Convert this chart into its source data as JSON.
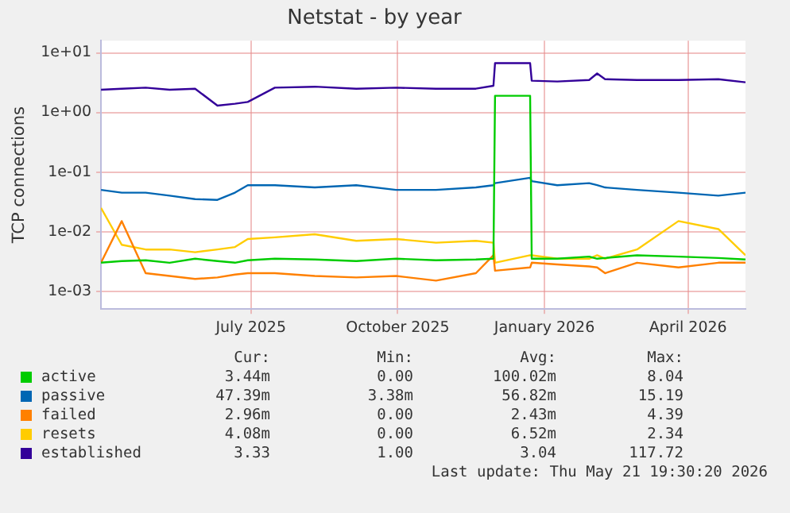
{
  "chart_data": {
    "type": "line",
    "title": "Netstat - by year",
    "ylabel": "TCP connections",
    "log": "y",
    "grid": true,
    "legend": "bottom",
    "marker": "none",
    "line_style": "solid",
    "ylim": [
      0.0005,
      16
    ],
    "yticks": [
      {
        "value": 0.001,
        "label": "1e-03"
      },
      {
        "value": 0.01,
        "label": "1e-02"
      },
      {
        "value": 0.1,
        "label": "1e-01"
      },
      {
        "value": 1,
        "label": "1e+00"
      },
      {
        "value": 10,
        "label": "1e+01"
      }
    ],
    "xlim": [
      "2025-04-12",
      "2026-05-21"
    ],
    "xticks": [
      {
        "value": "2025-07-15",
        "label": "July 2025"
      },
      {
        "value": "2025-10-15",
        "label": "October 2025"
      },
      {
        "value": "2026-01-15",
        "label": "January 2026"
      },
      {
        "value": "2026-04-15",
        "label": "April 2026"
      }
    ],
    "x": [
      "2025-04-12",
      "2025-04-25",
      "2025-05-10",
      "2025-05-25",
      "2025-06-10",
      "2025-06-24",
      "2025-07-05",
      "2025-07-13",
      "2025-07-30",
      "2025-08-24",
      "2025-09-19",
      "2025-10-14",
      "2025-11-08",
      "2025-12-03",
      "2025-12-14",
      "2025-12-15",
      "2026-01-06",
      "2026-01-07",
      "2026-01-23",
      "2026-02-12",
      "2026-02-17",
      "2026-02-22",
      "2026-03-14",
      "2026-04-09",
      "2026-05-04",
      "2026-05-21"
    ],
    "series": [
      {
        "name": "active",
        "color": "#00cc00",
        "values": [
          0.003,
          0.0032,
          0.0033,
          0.003,
          0.0035,
          0.0032,
          0.003,
          0.0033,
          0.0035,
          0.0034,
          0.0032,
          0.0035,
          0.0033,
          0.0034,
          0.0035,
          1.9,
          1.9,
          0.0035,
          0.0035,
          0.0038,
          0.0035,
          0.0036,
          0.004,
          0.0038,
          0.0036,
          0.0034
        ]
      },
      {
        "name": "passive",
        "color": "#0066b3",
        "values": [
          0.05,
          0.045,
          0.045,
          0.04,
          0.035,
          0.034,
          0.045,
          0.06,
          0.06,
          0.055,
          0.06,
          0.05,
          0.05,
          0.055,
          0.06,
          0.065,
          0.08,
          0.07,
          0.06,
          0.065,
          0.06,
          0.055,
          0.05,
          0.045,
          0.04,
          0.045
        ]
      },
      {
        "name": "failed",
        "color": "#ff8000",
        "values": [
          0.003,
          0.015,
          0.002,
          0.0018,
          0.0016,
          0.0017,
          0.0019,
          0.002,
          0.002,
          0.0018,
          0.0017,
          0.0018,
          0.0015,
          0.002,
          0.004,
          0.0022,
          0.0025,
          0.003,
          0.0028,
          0.0026,
          0.0025,
          0.002,
          0.003,
          0.0025,
          0.003,
          0.003
        ]
      },
      {
        "name": "resets",
        "color": "#ffcc00",
        "values": [
          0.025,
          0.006,
          0.005,
          0.005,
          0.0045,
          0.005,
          0.0055,
          0.0075,
          0.008,
          0.009,
          0.007,
          0.0075,
          0.0065,
          0.007,
          0.0065,
          0.003,
          0.004,
          0.004,
          0.0035,
          0.0035,
          0.004,
          0.0035,
          0.005,
          0.015,
          0.011,
          0.004
        ]
      },
      {
        "name": "established",
        "color": "#330099",
        "values": [
          2.4,
          2.5,
          2.6,
          2.4,
          2.5,
          1.3,
          1.4,
          1.5,
          2.6,
          2.7,
          2.5,
          2.6,
          2.5,
          2.5,
          2.8,
          6.7,
          6.7,
          3.4,
          3.3,
          3.5,
          4.5,
          3.6,
          3.5,
          3.5,
          3.6,
          3.2
        ]
      }
    ],
    "annotations": [
      "Cur:",
      "Min:",
      "Avg:",
      "Max:",
      "3.44m",
      "0.00",
      "100.02m",
      "8.04",
      "47.39m",
      "3.38m",
      "56.82m",
      "15.19",
      "2.96m",
      "0.00",
      "2.43m",
      "4.39",
      "4.08m",
      "0.00",
      "6.52m",
      "2.34",
      "3.33",
      "1.00",
      "3.04",
      "117.72",
      "Last update: Thu May 21 19:30:20 2026"
    ]
  }
}
